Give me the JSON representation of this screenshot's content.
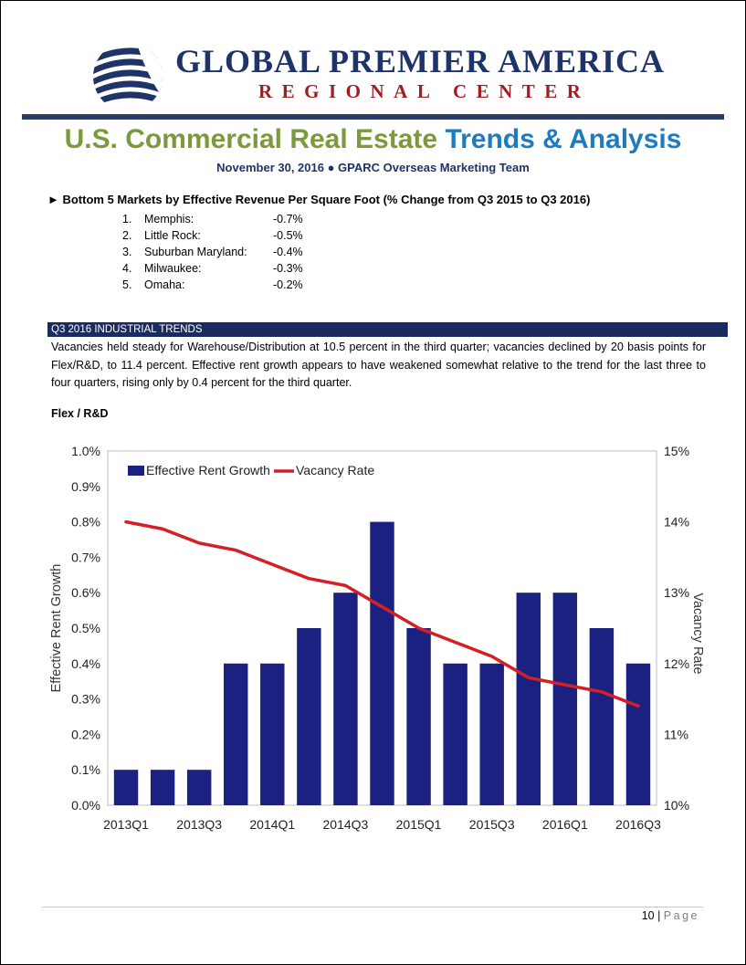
{
  "header": {
    "org_name": "GLOBAL PREMIER AMERICA",
    "org_sub": "REGIONAL CENTER"
  },
  "colors": {
    "navy": "#1e3468",
    "red": "#a11d22",
    "green": "#7b9a3c",
    "blue": "#1f7bbf",
    "bar": "#1a2180",
    "line": "#d42025"
  },
  "title": {
    "part1": "U.S. Commercial Real Estate",
    "part2": "Trends & Analysis"
  },
  "subtitle": "November 30, 2016 ● GPARC Overseas Marketing Team",
  "bottom_markets": {
    "heading": "► Bottom 5 Markets by Effective Revenue Per Square Foot (% Change from Q3 2015 to Q3 2016)",
    "items": [
      {
        "num": "1.",
        "name": "Memphis:",
        "value": "-0.7%"
      },
      {
        "num": "2.",
        "name": "Little Rock:",
        "value": "-0.5%"
      },
      {
        "num": "3.",
        "name": "Suburban Maryland:",
        "value": "-0.4%"
      },
      {
        "num": "4.",
        "name": "Milwaukee:",
        "value": "-0.3%"
      },
      {
        "num": "5.",
        "name": "Omaha:",
        "value": "-0.2%"
      }
    ]
  },
  "section": {
    "title": "Q3 2016 INDUSTRIAL TRENDS",
    "body": "Vacancies held steady for Warehouse/Distribution at 10.5 percent in the third quarter; vacancies declined by 20 basis points for Flex/R&D, to 11.4 percent.  Effective rent growth appears to have weakened somewhat relative to the trend for the last three to four quarters, rising only by 0.4 percent for the third quarter."
  },
  "chart_label": "Flex / R&D",
  "chart_data": {
    "type": "bar",
    "categories": [
      "2013Q1",
      "2013Q2",
      "2013Q3",
      "2013Q4",
      "2014Q1",
      "2014Q2",
      "2014Q3",
      "2014Q4",
      "2015Q1",
      "2015Q2",
      "2015Q3",
      "2015Q4",
      "2016Q1",
      "2016Q2",
      "2016Q3"
    ],
    "x_tick_labels": [
      "2013Q1",
      "",
      "2013Q3",
      "",
      "2014Q1",
      "",
      "2014Q3",
      "",
      "2015Q1",
      "",
      "2015Q3",
      "",
      "2016Q1",
      "",
      "2016Q3"
    ],
    "series": [
      {
        "name": "Effective Rent Growth",
        "type": "bar",
        "axis": "left",
        "values": [
          0.1,
          0.1,
          0.1,
          0.4,
          0.4,
          0.5,
          0.6,
          0.8,
          0.5,
          0.4,
          0.4,
          0.6,
          0.6,
          0.5,
          0.4
        ]
      },
      {
        "name": "Vacancy Rate",
        "type": "line",
        "axis": "right",
        "values": [
          14.0,
          13.9,
          13.7,
          13.6,
          13.4,
          13.2,
          13.1,
          12.8,
          12.5,
          12.3,
          12.1,
          11.8,
          11.7,
          11.6,
          11.4
        ]
      }
    ],
    "ylabel": "Effective Rent Growth",
    "y2label": "Vacancy Rate",
    "ylim": [
      0,
      1.0
    ],
    "y2lim": [
      10,
      15
    ],
    "y_ticks": [
      "0.0%",
      "0.1%",
      "0.2%",
      "0.3%",
      "0.4%",
      "0.5%",
      "0.6%",
      "0.7%",
      "0.8%",
      "0.9%",
      "1.0%"
    ],
    "y2_ticks": [
      "10%",
      "11%",
      "12%",
      "13%",
      "14%",
      "15%"
    ],
    "legend": "top-left",
    "grid": false
  },
  "footer": {
    "page_number": "10",
    "separator": "|",
    "page_label": "Page"
  }
}
